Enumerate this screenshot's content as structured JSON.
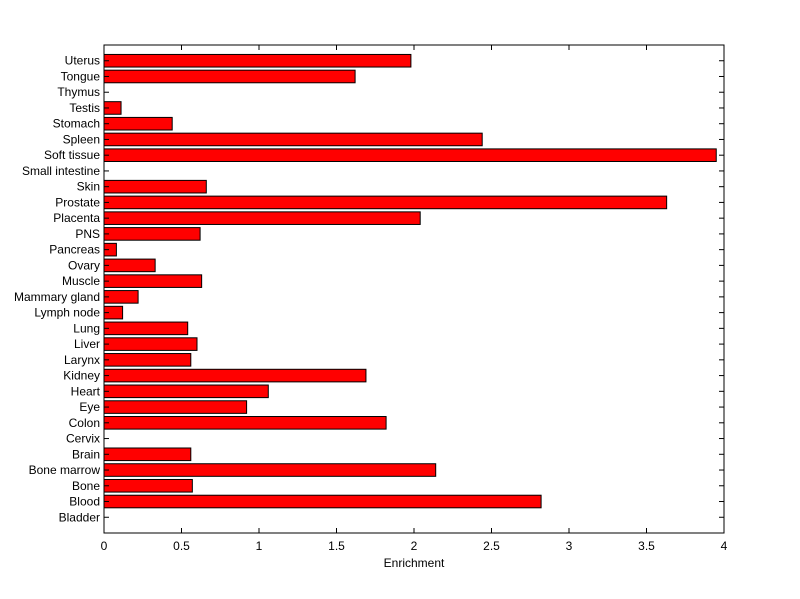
{
  "chart_data": {
    "type": "bar",
    "orientation": "horizontal",
    "title": "",
    "xlabel": "Enrichment",
    "ylabel": "",
    "xlim": [
      0,
      4
    ],
    "xticks": [
      0,
      0.5,
      1,
      1.5,
      2,
      2.5,
      3,
      3.5,
      4
    ],
    "xtick_labels": [
      "0",
      "0.5",
      "1",
      "1.5",
      "2",
      "2.5",
      "3",
      "3.5",
      "4"
    ],
    "grid": false,
    "legend": "none",
    "bar_color": "#ff0000",
    "categories": [
      "Bladder",
      "Blood",
      "Bone",
      "Bone marrow",
      "Brain",
      "Cervix",
      "Colon",
      "Eye",
      "Heart",
      "Kidney",
      "Larynx",
      "Liver",
      "Lung",
      "Lymph node",
      "Mammary gland",
      "Muscle",
      "Ovary",
      "Pancreas",
      "PNS",
      "Placenta",
      "Prostate",
      "Skin",
      "Small intestine",
      "Soft tissue",
      "Spleen",
      "Stomach",
      "Testis",
      "Thymus",
      "Tongue",
      "Uterus"
    ],
    "values": [
      0,
      2.82,
      0.57,
      2.14,
      0.56,
      0,
      1.82,
      0.92,
      1.06,
      1.69,
      0.56,
      0.6,
      0.54,
      0.12,
      0.22,
      0.63,
      0.33,
      0.08,
      0.62,
      2.04,
      3.63,
      0.66,
      0,
      3.95,
      2.44,
      0.44,
      0.11,
      0,
      1.62,
      1.98
    ]
  }
}
